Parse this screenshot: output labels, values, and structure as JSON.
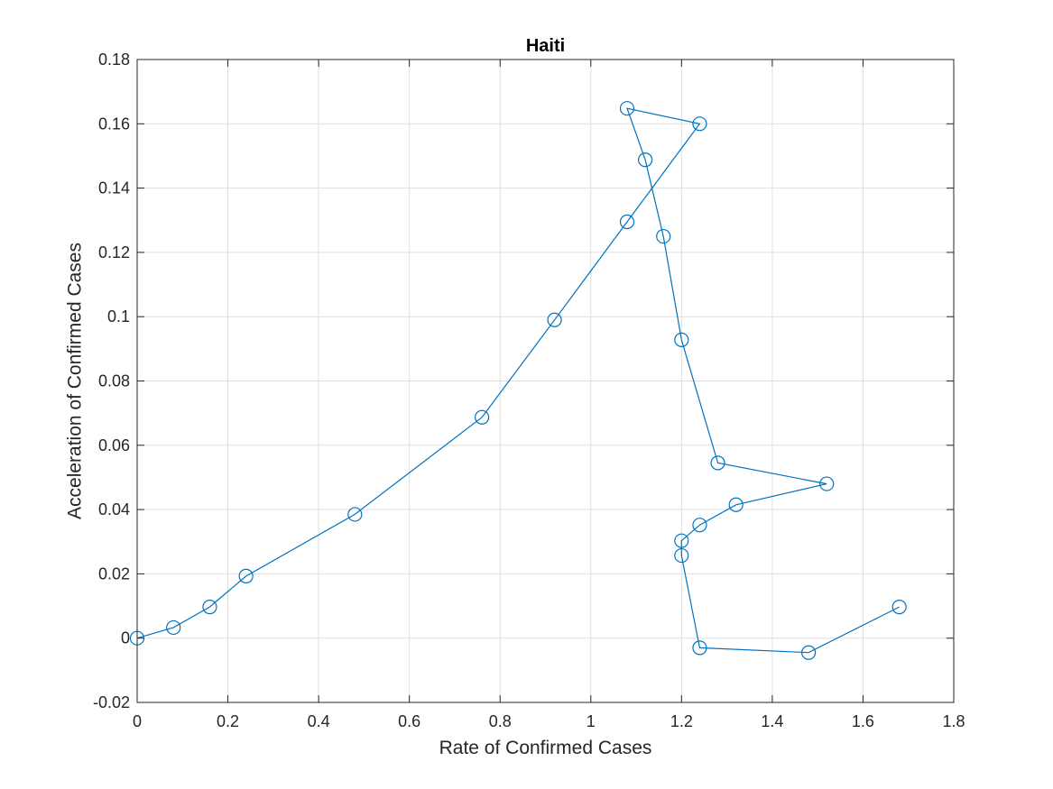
{
  "chart_data": {
    "type": "line",
    "title": "Haiti",
    "xlabel": "Rate of Confirmed Cases",
    "ylabel": "Acceleration of Confirmed Cases",
    "xlim": [
      0,
      1.8
    ],
    "ylim": [
      -0.02,
      0.18
    ],
    "xticks": [
      "0",
      "0.2",
      "0.4",
      "0.6",
      "0.8",
      "1",
      "1.2",
      "1.4",
      "1.6",
      "1.8"
    ],
    "yticks": [
      "-0.02",
      "0",
      "0.02",
      "0.04",
      "0.06",
      "0.08",
      "0.1",
      "0.12",
      "0.14",
      "0.16",
      "0.18"
    ],
    "grid": true,
    "marker": "circle",
    "color": "#0072BD",
    "series": [
      {
        "x": [
          0,
          0.08,
          0.16,
          0.24,
          0.48,
          0.76,
          0.92,
          1.08,
          1.24,
          1.08,
          1.12,
          1.16,
          1.2,
          1.28,
          1.52,
          1.32,
          1.24,
          1.2,
          1.2,
          1.24,
          1.48,
          1.68
        ],
        "y": [
          0,
          0.0033,
          0.0097,
          0.0193,
          0.0385,
          0.0687,
          0.099,
          0.1295,
          0.16,
          0.1648,
          0.1488,
          0.125,
          0.0928,
          0.0545,
          0.048,
          0.0415,
          0.0352,
          0.0303,
          0.0257,
          -0.003,
          -0.0045,
          0.0097
        ]
      }
    ]
  }
}
